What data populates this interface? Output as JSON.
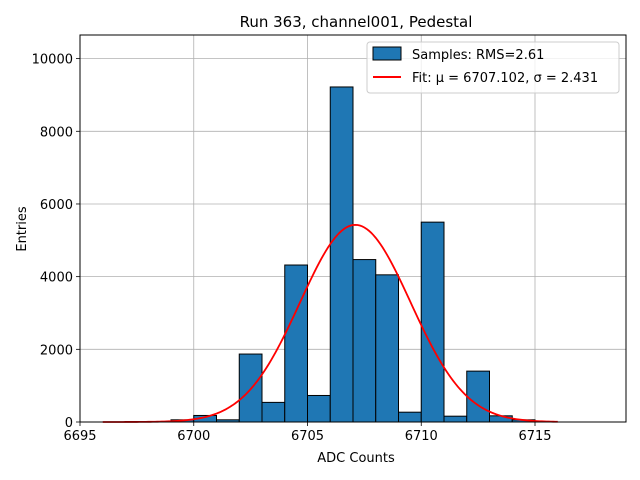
{
  "chart_data": {
    "type": "bar",
    "title": "Run 363, channel001, Pedestal",
    "xlabel": "ADC Counts",
    "ylabel": "Entries",
    "xlim": [
      6695,
      6719
    ],
    "ylim": [
      0,
      10650
    ],
    "grid": true,
    "legend_position": "top-right",
    "x_ticks": [
      6695,
      6700,
      6705,
      6710,
      6715
    ],
    "y_ticks": [
      0,
      2000,
      4000,
      6000,
      8000,
      10000
    ],
    "histogram": {
      "name": "Samples: RMS=2.61",
      "bin_edges": [
        6695,
        6696,
        6697,
        6698,
        6699,
        6700,
        6701,
        6702,
        6703,
        6704,
        6705,
        6706,
        6707,
        6708,
        6709,
        6710,
        6711,
        6712,
        6713,
        6714,
        6715,
        6716,
        6717,
        6718,
        6719
      ],
      "counts": [
        0,
        0,
        0,
        0,
        60,
        180,
        60,
        1870,
        540,
        4320,
        730,
        9220,
        4470,
        4050,
        270,
        5500,
        160,
        1400,
        170,
        60,
        0,
        0,
        0,
        0
      ],
      "color": "#1f77b4",
      "edge_color": "#000000"
    },
    "fit": {
      "name": "Fit: μ = 6707.102, σ = 2.431",
      "mu": 6707.102,
      "sigma": 2.431,
      "x_range": [
        6696,
        6716
      ],
      "color": "#ff0000"
    }
  }
}
